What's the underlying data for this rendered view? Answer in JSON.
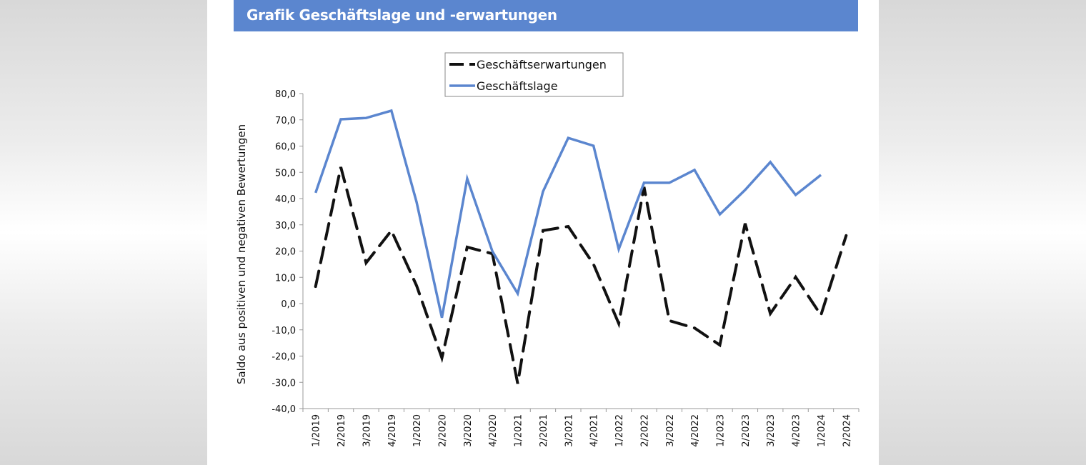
{
  "header": {
    "title": "Grafik Geschäftslage und -erwartungen",
    "bar_color": "#5b86cf"
  },
  "chart_data": {
    "type": "line",
    "title": "Grafik Geschäftslage und -erwartungen",
    "xlabel": "",
    "ylabel": "Saldo aus positiven und negativen Bewertungen",
    "ylim": [
      -40,
      80
    ],
    "yticks": [
      80,
      70,
      60,
      50,
      40,
      30,
      20,
      10,
      0,
      -10,
      -20,
      -30,
      -40
    ],
    "ytick_labels": [
      "80,0",
      "70,0",
      "60,0",
      "50,0",
      "40,0",
      "30,0",
      "20,0",
      "10,0",
      "0,0",
      "-10,0",
      "-20,0",
      "-30,0",
      "-40,0"
    ],
    "categories": [
      "1/2019",
      "2/2019",
      "3/2019",
      "4/2019",
      "1/2020",
      "2/2020",
      "3/2020",
      "4/2020",
      "1/2021",
      "2/2021",
      "3/2021",
      "4/2021",
      "1/2022",
      "2/2022",
      "3/2022",
      "4/2022",
      "1/2023",
      "2/2023",
      "3/2023",
      "4/2023",
      "1/2024",
      "2/2024"
    ],
    "grid": false,
    "legend_position": "top-center",
    "series": [
      {
        "name": "Geschäftserwartungen",
        "style": "dashed",
        "color": "#111111",
        "values": [
          6.5,
          52.0,
          15.5,
          27.8,
          6.8,
          -20.7,
          21.5,
          19.0,
          -30.5,
          27.8,
          29.4,
          15.0,
          -7.6,
          44.4,
          -6.5,
          -9.3,
          -15.8,
          30.5,
          -3.8,
          10.1,
          -4.4,
          25.9
        ]
      },
      {
        "name": "Geschäftslage",
        "style": "solid",
        "color": "#5b86cf",
        "values": [
          42.2,
          70.2,
          70.7,
          73.5,
          38.6,
          -5.4,
          47.6,
          19.9,
          3.8,
          42.7,
          63.1,
          60.1,
          20.7,
          46.0,
          46.0,
          50.9,
          34.0,
          43.3,
          53.9,
          41.4,
          49.0,
          null
        ]
      }
    ]
  }
}
